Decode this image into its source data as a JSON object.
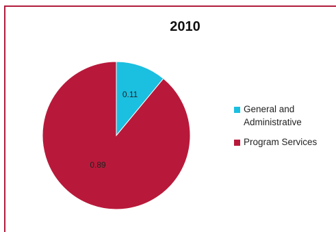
{
  "chart_data": {
    "type": "pie",
    "title": "2010",
    "slices": [
      {
        "name": "General and Administrative",
        "value": 0.11,
        "label": "0.11",
        "color": "#1bbfe0"
      },
      {
        "name": "Program Services",
        "value": 0.89,
        "label": "0.89",
        "color": "#b8193a"
      }
    ],
    "legend_position": "right"
  },
  "legend": {
    "items": [
      {
        "label_line1": "General and",
        "label_line2": "Administrative",
        "color": "#1bbfe0"
      },
      {
        "label_line1": "Program Services",
        "label_line2": "",
        "color": "#b8193a"
      }
    ]
  }
}
